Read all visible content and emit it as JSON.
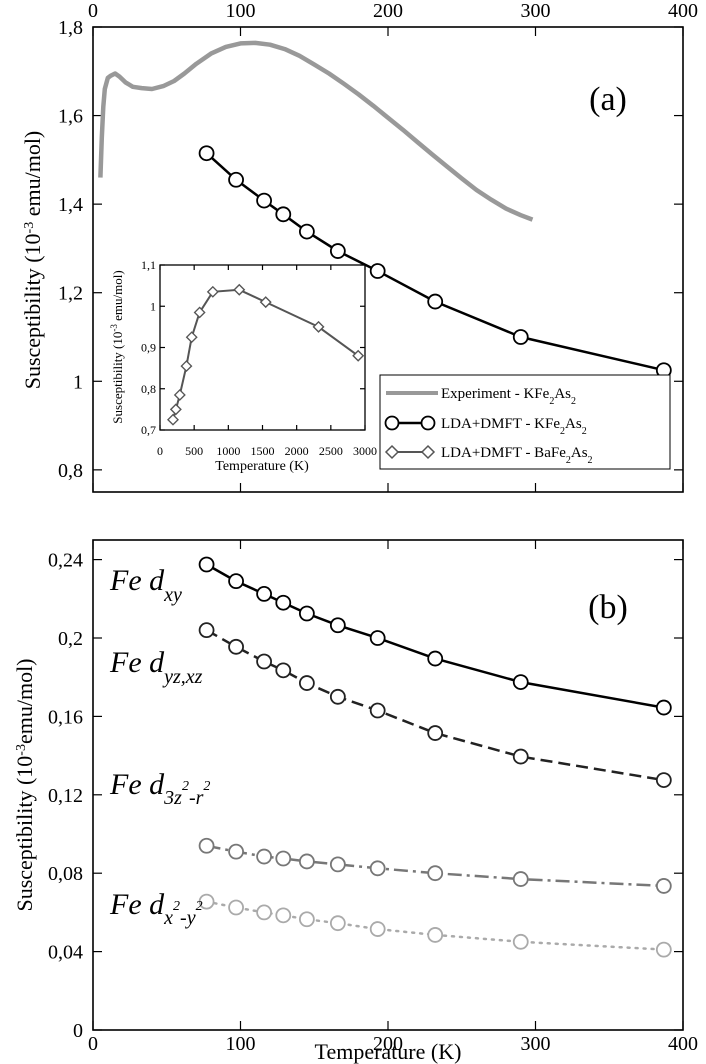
{
  "chart_data": [
    {
      "panel": "a",
      "type": "line",
      "panel_label": "(a)",
      "ylabel": "Susceptibility (10",
      "ylabel_sup": "-3",
      "ylabel_tail": " emu/mol)",
      "xlim": [
        0,
        400
      ],
      "ylim": [
        0.75,
        1.8
      ],
      "x_ticks": [
        {
          "v": 0,
          "label": "0"
        },
        {
          "v": 100,
          "label": "100"
        },
        {
          "v": 200,
          "label": "200"
        },
        {
          "v": 300,
          "label": "300"
        },
        {
          "v": 400,
          "label": "400"
        }
      ],
      "y_ticks": [
        {
          "v": 0.8,
          "label": "0,8"
        },
        {
          "v": 1.0,
          "label": "1"
        },
        {
          "v": 1.2,
          "label": "1,2"
        },
        {
          "v": 1.4,
          "label": "1,4"
        },
        {
          "v": 1.6,
          "label": "1,6"
        },
        {
          "v": 1.8,
          "label": "1,8"
        }
      ],
      "legend": [
        {
          "prefix": "Experiment - KFe",
          "sub": "2",
          "mid": "As",
          "sub2": "2"
        },
        {
          "prefix": "LDA+DMFT - KFe",
          "sub": "2",
          "mid": "As",
          "sub2": "2"
        },
        {
          "prefix": "LDA+DMFT - BaFe",
          "sub": "2",
          "mid": "As",
          "sub2": "2"
        }
      ],
      "series": [
        {
          "name": "Experiment - KFe2As2",
          "color": "#999999",
          "x": [
            5,
            6,
            7,
            8,
            10,
            12,
            15,
            18,
            22,
            27,
            33,
            40,
            48,
            55,
            62,
            70,
            80,
            90,
            100,
            110,
            120,
            130,
            140,
            150,
            160,
            170,
            180,
            190,
            200,
            210,
            220,
            230,
            240,
            250,
            260,
            270,
            280,
            290,
            298
          ],
          "y": [
            1.46,
            1.55,
            1.62,
            1.66,
            1.685,
            1.69,
            1.695,
            1.688,
            1.675,
            1.665,
            1.662,
            1.66,
            1.667,
            1.678,
            1.695,
            1.717,
            1.74,
            1.755,
            1.763,
            1.764,
            1.76,
            1.75,
            1.735,
            1.715,
            1.695,
            1.672,
            1.648,
            1.622,
            1.595,
            1.568,
            1.54,
            1.512,
            1.485,
            1.458,
            1.432,
            1.41,
            1.39,
            1.375,
            1.365
          ]
        },
        {
          "name": "LDA+DMFT - KFe2As2",
          "color": "#000000",
          "marker": "circle",
          "x": [
            77,
            97,
            116,
            129,
            145,
            166,
            193,
            232,
            290,
            387
          ],
          "y": [
            1.515,
            1.455,
            1.408,
            1.377,
            1.338,
            1.294,
            1.249,
            1.18,
            1.1,
            1.025
          ]
        }
      ],
      "inset": {
        "xlabel": "Temperature (K)",
        "ylabel": "Susceptibility (10",
        "ylabel_sup": "-3",
        "ylabel_tail": " emu/mol)",
        "xlim": [
          0,
          3000
        ],
        "ylim": [
          0.7,
          1.1
        ],
        "x_ticks": [
          {
            "v": 0,
            "label": "0"
          },
          {
            "v": 500,
            "label": "500"
          },
          {
            "v": 1000,
            "label": "1000"
          },
          {
            "v": 1500,
            "label": "1500"
          },
          {
            "v": 2000,
            "label": "2000"
          },
          {
            "v": 2500,
            "label": "2500"
          },
          {
            "v": 3000,
            "label": "3000"
          }
        ],
        "y_ticks": [
          {
            "v": 0.7,
            "label": "0,7"
          },
          {
            "v": 0.8,
            "label": "0,8"
          },
          {
            "v": 0.9,
            "label": "0,9"
          },
          {
            "v": 1.0,
            "label": "1"
          },
          {
            "v": 1.1,
            "label": "1,1"
          }
        ],
        "series": [
          {
            "name": "LDA+DMFT - BaFe2As2",
            "color": "#555555",
            "marker": "diamond",
            "x": [
              190,
              232,
              290,
              387,
              464,
              580,
              773,
              1160,
              1547,
              2320,
              2900
            ],
            "y": [
              0.725,
              0.75,
              0.785,
              0.855,
              0.925,
              0.985,
              1.035,
              1.04,
              1.01,
              0.95,
              0.88
            ]
          }
        ]
      }
    },
    {
      "panel": "b",
      "type": "line",
      "panel_label": "(b)",
      "xlabel": "Temperature (K)",
      "ylabel": "Susceptibility (10",
      "ylabel_sup": "-3",
      "ylabel_tail": "emu/mol)",
      "xlim": [
        0,
        400
      ],
      "ylim": [
        0,
        0.25
      ],
      "x_ticks": [
        {
          "v": 0,
          "label": "0"
        },
        {
          "v": 100,
          "label": "100"
        },
        {
          "v": 200,
          "label": "200"
        },
        {
          "v": 300,
          "label": "300"
        },
        {
          "v": 400,
          "label": "400"
        }
      ],
      "y_ticks": [
        {
          "v": 0,
          "label": "0"
        },
        {
          "v": 0.04,
          "label": "0,04"
        },
        {
          "v": 0.08,
          "label": "0,08"
        },
        {
          "v": 0.12,
          "label": "0,12"
        },
        {
          "v": 0.16,
          "label": "0,16"
        },
        {
          "v": 0.2,
          "label": "0,2"
        },
        {
          "v": 0.24,
          "label": "0,24"
        }
      ],
      "orbital_labels": [
        {
          "text": "Fe d",
          "sub": "xy"
        },
        {
          "text": "Fe d",
          "sub": "yz,xz"
        },
        {
          "text": "Fe d",
          "sub": "3z",
          "sup1": "2",
          "sub_mid": "-r",
          "sup2": "2"
        },
        {
          "text": "Fe d",
          "sub": "x",
          "sup1": "2",
          "sub_mid": "-y",
          "sup2": "2"
        }
      ],
      "series": [
        {
          "name": "Fe dxy",
          "color": "#000000",
          "dash": "solid",
          "x": [
            77,
            97,
            116,
            129,
            145,
            166,
            193,
            232,
            290,
            387
          ],
          "y": [
            0.2375,
            0.229,
            0.2225,
            0.218,
            0.2125,
            0.2065,
            0.2,
            0.1895,
            0.1775,
            0.1645
          ]
        },
        {
          "name": "Fe dyz,xz",
          "color": "#222222",
          "dash": "dashed",
          "x": [
            77,
            97,
            116,
            129,
            145,
            166,
            193,
            232,
            290,
            387
          ],
          "y": [
            0.204,
            0.1955,
            0.188,
            0.1835,
            0.177,
            0.17,
            0.163,
            0.1515,
            0.1395,
            0.1275
          ]
        },
        {
          "name": "Fe d3z2-r2",
          "color": "#777777",
          "dash": "dashdot",
          "x": [
            77,
            97,
            116,
            129,
            145,
            166,
            193,
            232,
            290,
            387
          ],
          "y": [
            0.094,
            0.091,
            0.0885,
            0.0875,
            0.086,
            0.0845,
            0.0825,
            0.08,
            0.077,
            0.0735
          ]
        },
        {
          "name": "Fe dx2-y2",
          "color": "#aaaaaa",
          "dash": "dotted",
          "x": [
            77,
            97,
            116,
            129,
            145,
            166,
            193,
            232,
            290,
            387
          ],
          "y": [
            0.0655,
            0.0625,
            0.06,
            0.0585,
            0.0565,
            0.0545,
            0.0515,
            0.0485,
            0.045,
            0.041
          ]
        }
      ]
    }
  ]
}
